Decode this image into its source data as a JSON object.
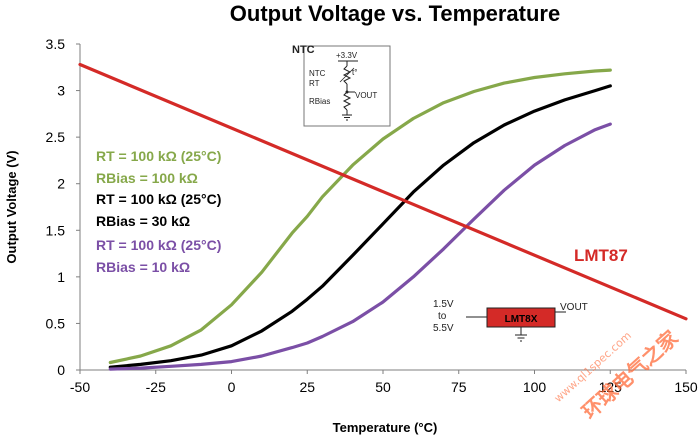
{
  "chart_data": {
    "type": "line",
    "title": "Output Voltage vs. Temperature",
    "xlabel": "Temperature (°C)",
    "ylabel": "Output Voltage (V)",
    "xlim": [
      -50,
      150
    ],
    "ylim": [
      0,
      3.5
    ],
    "xticks": [
      "-50",
      "-25",
      "0",
      "25",
      "50",
      "75",
      "100",
      "125",
      "150"
    ],
    "yticks": [
      "0",
      "0.5",
      "1",
      "1.5",
      "2",
      "2.5",
      "3",
      "3.5"
    ],
    "grid": false,
    "series": [
      {
        "annotation_lines": [
          "RT = 100 kΩ (25°C)",
          "RBias = 100 kΩ"
        ],
        "color": "#86a84a",
        "points": [
          [
            -40,
            0.08
          ],
          [
            -30,
            0.15
          ],
          [
            -20,
            0.26
          ],
          [
            -10,
            0.43
          ],
          [
            0,
            0.7
          ],
          [
            10,
            1.05
          ],
          [
            20,
            1.47
          ],
          [
            25,
            1.65
          ],
          [
            30,
            1.86
          ],
          [
            40,
            2.2
          ],
          [
            50,
            2.48
          ],
          [
            60,
            2.7
          ],
          [
            70,
            2.87
          ],
          [
            80,
            2.99
          ],
          [
            90,
            3.08
          ],
          [
            100,
            3.14
          ],
          [
            110,
            3.18
          ],
          [
            120,
            3.21
          ],
          [
            125,
            3.22
          ]
        ]
      },
      {
        "annotation_lines": [
          "RT = 100 kΩ (25°C)",
          "RBias = 30 kΩ"
        ],
        "color": "#000000",
        "points": [
          [
            -40,
            0.03
          ],
          [
            -30,
            0.06
          ],
          [
            -20,
            0.1
          ],
          [
            -10,
            0.16
          ],
          [
            0,
            0.26
          ],
          [
            10,
            0.42
          ],
          [
            20,
            0.63
          ],
          [
            25,
            0.76
          ],
          [
            30,
            0.9
          ],
          [
            40,
            1.23
          ],
          [
            50,
            1.57
          ],
          [
            60,
            1.91
          ],
          [
            70,
            2.2
          ],
          [
            80,
            2.44
          ],
          [
            90,
            2.63
          ],
          [
            100,
            2.78
          ],
          [
            110,
            2.9
          ],
          [
            120,
            3.0
          ],
          [
            125,
            3.05
          ]
        ]
      },
      {
        "annotation_lines": [
          "RT = 100 kΩ (25°C)",
          "RBias = 10 kΩ"
        ],
        "color": "#7b4fa6",
        "points": [
          [
            -40,
            0.01
          ],
          [
            -30,
            0.02
          ],
          [
            -20,
            0.04
          ],
          [
            -10,
            0.06
          ],
          [
            0,
            0.09
          ],
          [
            10,
            0.15
          ],
          [
            20,
            0.24
          ],
          [
            25,
            0.29
          ],
          [
            30,
            0.36
          ],
          [
            40,
            0.52
          ],
          [
            50,
            0.73
          ],
          [
            60,
            1.0
          ],
          [
            70,
            1.3
          ],
          [
            80,
            1.62
          ],
          [
            90,
            1.93
          ],
          [
            100,
            2.2
          ],
          [
            110,
            2.41
          ],
          [
            120,
            2.58
          ],
          [
            125,
            2.64
          ]
        ]
      },
      {
        "name": "LMT87",
        "color": "#d42a27",
        "points": [
          [
            -50,
            3.28
          ],
          [
            150,
            0.55
          ]
        ]
      }
    ]
  },
  "inset_ntc": {
    "title": "NTC",
    "supply": "+3.3V",
    "ntc_label": "NTC",
    "rt_label": "RT",
    "t_label": "t°",
    "rbias_label": "RBias",
    "vout_label": "VOUT"
  },
  "inset_lmt": {
    "chip": "LMT8X",
    "vin_line1": "1.5V",
    "vin_line2": "to",
    "vin_line3": "5.5V",
    "vout_label": "VOUT"
  },
  "watermark": {
    "text": "环球电气之家",
    "sub": "www.ql1spec.com"
  }
}
